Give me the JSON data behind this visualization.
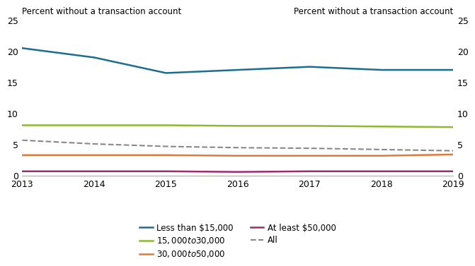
{
  "years": [
    2013,
    2014,
    2015,
    2016,
    2017,
    2018,
    2019
  ],
  "series_order": [
    "Less than $15,000",
    "$15,000 to $30,000",
    "$30,000 to $50,000",
    "At least $50,000",
    "All"
  ],
  "series": {
    "Less than $15,000": {
      "values": [
        20.5,
        19.0,
        16.5,
        17.0,
        17.5,
        17.0,
        17.0
      ],
      "color": "#1c6d8f",
      "linestyle": "-",
      "linewidth": 1.8,
      "zorder": 5
    },
    "$15,000 to $30,000": {
      "values": [
        8.1,
        8.1,
        8.1,
        8.0,
        8.0,
        7.9,
        7.8
      ],
      "color": "#8cb832",
      "linestyle": "-",
      "linewidth": 1.8,
      "zorder": 4
    },
    "$30,000 to $50,000": {
      "values": [
        3.3,
        3.3,
        3.3,
        3.2,
        3.2,
        3.2,
        3.4
      ],
      "color": "#e07a39",
      "linestyle": "-",
      "linewidth": 1.8,
      "zorder": 3
    },
    "At least $50,000": {
      "values": [
        0.7,
        0.7,
        0.7,
        0.6,
        0.7,
        0.7,
        0.7
      ],
      "color": "#9e2b6e",
      "linestyle": "-",
      "linewidth": 1.8,
      "zorder": 2
    },
    "All": {
      "values": [
        5.7,
        5.1,
        4.7,
        4.5,
        4.4,
        4.2,
        4.0
      ],
      "color": "#888888",
      "linestyle": "--",
      "linewidth": 1.5,
      "zorder": 1
    }
  },
  "ylabel_left": "Percent without a transaction account",
  "ylabel_right": "Percent without a transaction account",
  "ylim": [
    0,
    25
  ],
  "yticks": [
    0,
    5,
    10,
    15,
    20,
    25
  ],
  "xlim": [
    2013,
    2019
  ],
  "xticks": [
    2013,
    2014,
    2015,
    2016,
    2017,
    2018,
    2019
  ],
  "legend_col1": [
    "Less than $15,000",
    "$30,000 to $50,000",
    "All"
  ],
  "legend_col2": [
    "$15,000 to $30,000",
    "At least $50,000"
  ],
  "background_color": "#ffffff"
}
